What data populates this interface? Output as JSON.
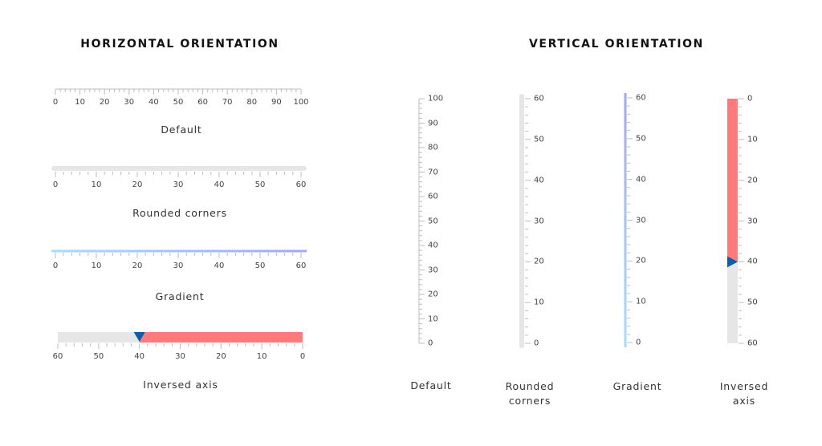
{
  "horizontal": {
    "title": "HORIZONTAL ORIENTATION",
    "gauges": [
      {
        "id": "h-default",
        "caption": "Default",
        "style": "default",
        "min": 0,
        "max": 100,
        "major": 10,
        "minor": 2,
        "inversed": false,
        "labels": [
          "0",
          "10",
          "20",
          "30",
          "40",
          "50",
          "60",
          "70",
          "80",
          "90",
          "100"
        ]
      },
      {
        "id": "h-rounded",
        "caption": "Rounded corners",
        "style": "rounded",
        "min": 0,
        "max": 60,
        "major": 10,
        "minor": 2,
        "inversed": false,
        "labels": [
          "0",
          "10",
          "20",
          "30",
          "40",
          "50",
          "60"
        ]
      },
      {
        "id": "h-gradient",
        "caption": "Gradient",
        "style": "gradient",
        "min": 0,
        "max": 60,
        "major": 10,
        "minor": 2,
        "inversed": false,
        "labels": [
          "0",
          "10",
          "20",
          "30",
          "40",
          "50",
          "60"
        ]
      },
      {
        "id": "h-inversed",
        "caption": "Inversed axis",
        "style": "inversed",
        "min": 0,
        "max": 60,
        "major": 10,
        "minor": 2,
        "inversed": true,
        "pointer_value": 40,
        "labels": [
          "60",
          "50",
          "40",
          "30",
          "20",
          "10",
          "0"
        ]
      }
    ]
  },
  "vertical": {
    "title": "VERTICAL ORIENTATION",
    "gauges": [
      {
        "id": "v-default",
        "caption": "Default",
        "style": "default",
        "min": 0,
        "max": 100,
        "major": 10,
        "minor": 2,
        "inversed": false,
        "labels": [
          "0",
          "10",
          "20",
          "30",
          "40",
          "50",
          "60",
          "70",
          "80",
          "90",
          "100"
        ]
      },
      {
        "id": "v-rounded",
        "caption": "Rounded corners",
        "style": "rounded",
        "min": 0,
        "max": 60,
        "major": 10,
        "minor": 2,
        "inversed": false,
        "labels": [
          "0",
          "10",
          "20",
          "30",
          "40",
          "50",
          "60"
        ]
      },
      {
        "id": "v-gradient",
        "caption": "Gradient",
        "style": "gradient",
        "min": 0,
        "max": 60,
        "major": 10,
        "minor": 2,
        "inversed": false,
        "labels": [
          "0",
          "10",
          "20",
          "30",
          "40",
          "50",
          "60"
        ]
      },
      {
        "id": "v-inversed",
        "caption": "Inversed axis",
        "style": "inversed",
        "min": 0,
        "max": 60,
        "major": 10,
        "minor": 2,
        "inversed": true,
        "pointer_value": 40,
        "labels": [
          "60",
          "50",
          "40",
          "30",
          "20",
          "10",
          "0"
        ]
      }
    ]
  },
  "colors": {
    "track": "#e6e6e6",
    "tick": "#bdbdbd",
    "range": "#ff7a7a",
    "pointer": "#0b5ea8",
    "gradient_start": "#a6dcff",
    "gradient_end": "#a3a6ef",
    "label": "#444444"
  }
}
